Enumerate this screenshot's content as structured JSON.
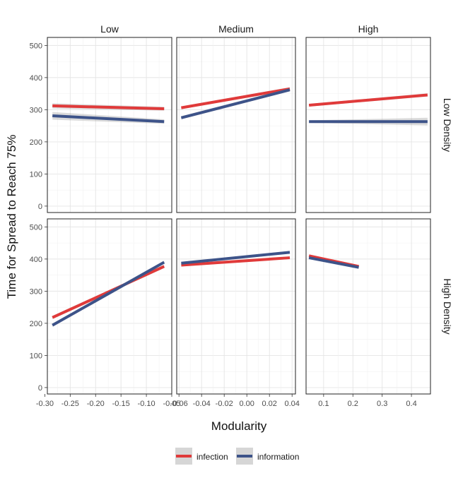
{
  "chart_data": {
    "type": "line",
    "title": "",
    "xlabel": "Modularity",
    "ylabel": "Time for Spread to Reach 75%",
    "ylim": [
      -20,
      525
    ],
    "yticks": [
      0,
      100,
      200,
      300,
      400,
      500
    ],
    "grid": true,
    "legend_position": "bottom",
    "col_facets": [
      "Low",
      "Medium",
      "High"
    ],
    "row_facets": [
      "Low Density",
      "High Density"
    ],
    "x_axes": [
      {
        "xlim": [
          -0.295,
          -0.05
        ],
        "ticks": [
          -0.3,
          -0.25,
          -0.2,
          -0.15,
          -0.1,
          -0.05
        ],
        "tick_labels": [
          "-0.30",
          "-0.25",
          "-0.20",
          "-0.15",
          "-0.10",
          "-0.05"
        ]
      },
      {
        "xlim": [
          -0.062,
          0.043
        ],
        "ticks": [
          -0.06,
          -0.04,
          -0.02,
          0.0,
          0.02,
          0.04
        ],
        "tick_labels": [
          "-0.06",
          "-0.04",
          "-0.02",
          "0.00",
          "0.02",
          "0.04"
        ]
      },
      {
        "xlim": [
          0.04,
          0.465
        ],
        "ticks": [
          0.1,
          0.2,
          0.3,
          0.4
        ],
        "tick_labels": [
          "0.1",
          "0.2",
          "0.3",
          "0.4"
        ]
      }
    ],
    "series": [
      {
        "name": "infection",
        "color": "#e03a3a"
      },
      {
        "name": "information",
        "color": "#3d5389"
      }
    ],
    "panels": [
      {
        "row": 0,
        "col": 0,
        "lines": [
          {
            "series": "infection",
            "x": [
              -0.285,
              -0.065
            ],
            "y": [
              312,
              303
            ],
            "ci": [
              8,
              6
            ]
          },
          {
            "series": "information",
            "x": [
              -0.285,
              -0.065
            ],
            "y": [
              281,
              263
            ],
            "ci": [
              12,
              7
            ]
          }
        ]
      },
      {
        "row": 0,
        "col": 1,
        "lines": [
          {
            "series": "infection",
            "x": [
              -0.058,
              0.038
            ],
            "y": [
              306,
              365
            ],
            "ci": [
              4,
              5
            ]
          },
          {
            "series": "information",
            "x": [
              -0.058,
              0.038
            ],
            "y": [
              275,
              362
            ],
            "ci": [
              5,
              5
            ]
          }
        ]
      },
      {
        "row": 0,
        "col": 2,
        "lines": [
          {
            "series": "infection",
            "x": [
              0.05,
              0.455
            ],
            "y": [
              314,
              346
            ],
            "ci": [
              4,
              5
            ]
          },
          {
            "series": "information",
            "x": [
              0.05,
              0.455
            ],
            "y": [
              263,
              263
            ],
            "ci": [
              4,
              12
            ]
          }
        ]
      },
      {
        "row": 1,
        "col": 0,
        "lines": [
          {
            "series": "infection",
            "x": [
              -0.285,
              -0.065
            ],
            "y": [
              218,
              377
            ],
            "ci": [
              5,
              5
            ]
          },
          {
            "series": "information",
            "x": [
              -0.285,
              -0.065
            ],
            "y": [
              194,
              390
            ],
            "ci": [
              5,
              5
            ]
          }
        ]
      },
      {
        "row": 1,
        "col": 1,
        "lines": [
          {
            "series": "infection",
            "x": [
              -0.058,
              0.038
            ],
            "y": [
              381,
              404
            ],
            "ci": [
              4,
              4
            ]
          },
          {
            "series": "information",
            "x": [
              -0.058,
              0.038
            ],
            "y": [
              387,
              421
            ],
            "ci": [
              4,
              4
            ]
          }
        ]
      },
      {
        "row": 1,
        "col": 2,
        "lines": [
          {
            "series": "infection",
            "x": [
              0.05,
              0.22
            ],
            "y": [
              410,
              377
            ],
            "ci": [
              4,
              4
            ]
          },
          {
            "series": "information",
            "x": [
              0.05,
              0.22
            ],
            "y": [
              404,
              374
            ],
            "ci": [
              4,
              4
            ]
          }
        ]
      }
    ]
  }
}
